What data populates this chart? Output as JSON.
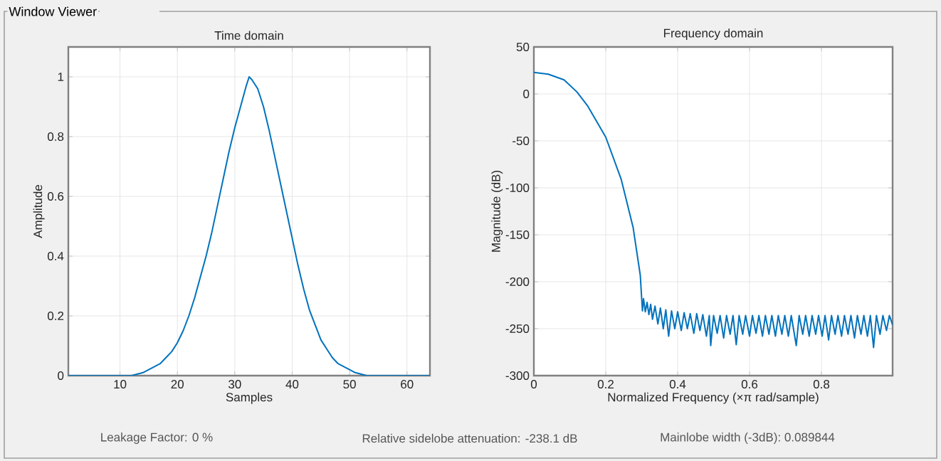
{
  "chart_data": [
    {
      "type": "line",
      "title": "Time domain",
      "xlabel": "Samples",
      "ylabel": "Amplitude",
      "color": "#0072bd",
      "grid": true,
      "xlim": [
        1,
        64
      ],
      "ylim": [
        0,
        1.1
      ],
      "xticks": [
        10,
        20,
        30,
        40,
        50,
        60
      ],
      "yticks": [
        0,
        0.2,
        0.4,
        0.6,
        0.8,
        1
      ],
      "x": [
        1,
        5,
        10,
        12,
        14,
        15,
        16,
        17,
        18,
        19,
        20,
        21,
        22,
        23,
        24,
        25,
        26,
        27,
        28,
        29,
        30,
        31,
        32,
        32.5,
        33,
        34,
        35,
        36,
        37,
        38,
        39,
        40,
        41,
        42,
        43,
        44,
        45,
        46,
        47,
        48,
        49,
        50,
        51,
        53,
        55,
        60,
        64
      ],
      "values": [
        0,
        0,
        0,
        0,
        0.01,
        0.02,
        0.03,
        0.04,
        0.06,
        0.08,
        0.11,
        0.15,
        0.2,
        0.26,
        0.33,
        0.4,
        0.48,
        0.57,
        0.66,
        0.75,
        0.83,
        0.9,
        0.97,
        1,
        0.99,
        0.96,
        0.9,
        0.82,
        0.73,
        0.64,
        0.55,
        0.46,
        0.37,
        0.29,
        0.22,
        0.17,
        0.12,
        0.09,
        0.06,
        0.04,
        0.03,
        0.02,
        0.01,
        0,
        0,
        0,
        0
      ],
      "annotations": [
        "Window Viewer",
        "Leakage Factor: 0 %"
      ]
    },
    {
      "type": "line",
      "title": "Frequency domain",
      "xlabel": "Normalized Frequency  (×π rad/sample)",
      "ylabel": "Magnitude (dB)",
      "color": "#0072bd",
      "grid": true,
      "xlim": [
        0,
        0.998
      ],
      "ylim": [
        -300,
        50
      ],
      "xticks": [
        0,
        0.2,
        0.4,
        0.6,
        0.8
      ],
      "yticks": [
        -300,
        -250,
        -200,
        -150,
        -100,
        -50,
        0,
        50
      ],
      "x": [
        0,
        0.04,
        0.084,
        0.12,
        0.15,
        0.2,
        0.243,
        0.276,
        0.296,
        0.302,
        0.305,
        0.31,
        0.315,
        0.32,
        0.325,
        0.33,
        0.337,
        0.345,
        0.352,
        0.36,
        0.367,
        0.375,
        0.383,
        0.392,
        0.4,
        0.41,
        0.418,
        0.427,
        0.435,
        0.445,
        0.453,
        0.462,
        0.47,
        0.48,
        0.488,
        0.492,
        0.5,
        0.51,
        0.518,
        0.528,
        0.536,
        0.546,
        0.554,
        0.563,
        0.571,
        0.581,
        0.589,
        0.6,
        0.608,
        0.618,
        0.626,
        0.636,
        0.644,
        0.654,
        0.662,
        0.672,
        0.68,
        0.69,
        0.698,
        0.708,
        0.716,
        0.73,
        0.738,
        0.748,
        0.756,
        0.766,
        0.774,
        0.784,
        0.792,
        0.802,
        0.81,
        0.82,
        0.828,
        0.838,
        0.846,
        0.856,
        0.864,
        0.874,
        0.882,
        0.892,
        0.9,
        0.91,
        0.918,
        0.928,
        0.936,
        0.945,
        0.953,
        0.963,
        0.971,
        0.981,
        0.989,
        0.998
      ],
      "values": [
        23,
        21,
        15,
        2,
        -13,
        -46,
        -91,
        -142,
        -193,
        -231,
        -218,
        -232,
        -222,
        -235,
        -224,
        -240,
        -226,
        -245,
        -228,
        -250,
        -230,
        -258,
        -231,
        -250,
        -232,
        -252,
        -233,
        -250,
        -234,
        -255,
        -234,
        -252,
        -235,
        -258,
        -236,
        -268,
        -236,
        -255,
        -236,
        -260,
        -236,
        -256,
        -236,
        -267,
        -236,
        -256,
        -236,
        -258,
        -236,
        -255,
        -236,
        -258,
        -236,
        -256,
        -236,
        -258,
        -236,
        -256,
        -236,
        -258,
        -236,
        -268,
        -236,
        -256,
        -236,
        -258,
        -236,
        -256,
        -236,
        -258,
        -236,
        -262,
        -236,
        -256,
        -236,
        -258,
        -236,
        -256,
        -236,
        -260,
        -236,
        -256,
        -236,
        -258,
        -236,
        -270,
        -236,
        -256,
        -236,
        -252,
        -236,
        -246
      ],
      "annotations": [
        "Relative sidelobe attenuation: -238.1 dB",
        "Mainlobe width (-3dB): 0.089844"
      ]
    }
  ]
}
